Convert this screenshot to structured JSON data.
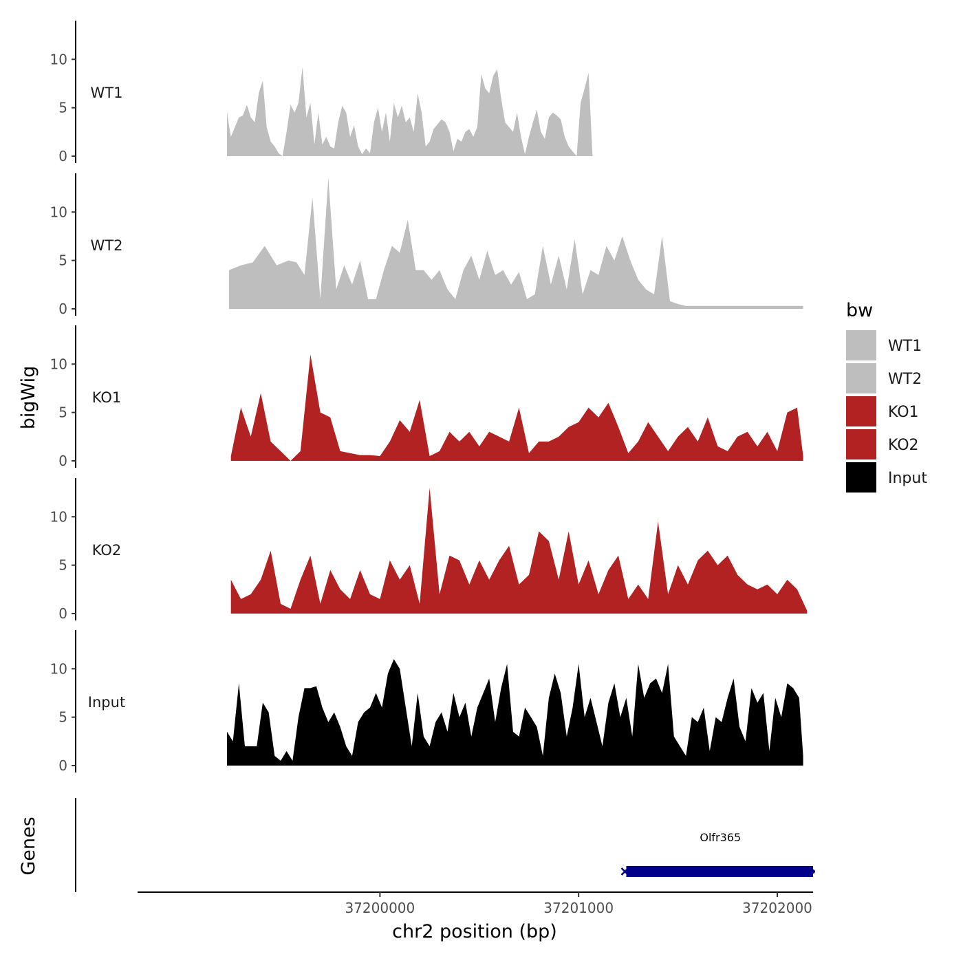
{
  "chart_data": {
    "type": "area",
    "xlabel": "chr2 position (bp)",
    "ylabel": "bigWig",
    "xlim": [
      37198780,
      37202180
    ],
    "x_ticks": [
      37200000,
      37201000,
      37202000
    ],
    "x_tick_labels": [
      "37200000",
      "37201000",
      "37202000"
    ],
    "ylim": [
      0,
      14
    ],
    "y_ticks": [
      0,
      5,
      10
    ],
    "y_tick_labels": [
      "0",
      "5",
      "10"
    ],
    "genes_track_label": "Genes",
    "legend": {
      "title": "bw",
      "position": "right",
      "entries": [
        {
          "label": "WT1",
          "color": "#bebebe"
        },
        {
          "label": "WT2",
          "color": "#bebebe"
        },
        {
          "label": "KO1",
          "color": "#b22222"
        },
        {
          "label": "KO2",
          "color": "#b22222"
        },
        {
          "label": "Input",
          "color": "#000000"
        }
      ]
    },
    "series": [
      {
        "name": "WT1",
        "color": "#bebebe",
        "x": [
          37199230,
          37199250,
          37199270,
          37199290,
          37199310,
          37199330,
          37199350,
          37199370,
          37199390,
          37199410,
          37199430,
          37199450,
          37199470,
          37199490,
          37199510,
          37199530,
          37199550,
          37199570,
          37199590,
          37199610,
          37199630,
          37199650,
          37199670,
          37199690,
          37199710,
          37199730,
          37199750,
          37199770,
          37199790,
          37199810,
          37199830,
          37199850,
          37199870,
          37199890,
          37199910,
          37199930,
          37199950,
          37199970,
          37199990,
          37200010,
          37200030,
          37200050,
          37200070,
          37200090,
          37200110,
          37200130,
          37200150,
          37200170,
          37200190,
          37200210,
          37200230,
          37200250,
          37200270,
          37200290,
          37200310,
          37200330,
          37200350,
          37200370,
          37200390,
          37200410,
          37200430,
          37200450,
          37200470,
          37200490,
          37200510,
          37200530,
          37200550,
          37200570,
          37200590,
          37200610,
          37200630,
          37200650,
          37200670,
          37200690,
          37200710,
          37200730,
          37200750,
          37200770,
          37200790,
          37200810,
          37200830,
          37200850,
          37200870,
          37200890,
          37200910,
          37200930,
          37200950,
          37200970,
          37200990,
          37201010,
          37201030,
          37201050,
          37201070,
          37201090,
          37201110,
          37201130,
          37201150,
          37201170,
          37201190,
          37201210,
          37201230,
          37201250,
          37201270,
          37201290,
          37201310,
          37201330,
          37201350,
          37201370,
          37201390,
          37201410,
          37201430,
          37201450,
          37201470,
          37201490,
          37201510,
          37201530,
          37201550,
          37201570,
          37201590,
          37201610,
          37201630,
          37201650,
          37201670,
          37201690,
          37201710,
          37201730,
          37201750,
          37201770,
          37201790,
          37201810,
          37201830,
          37201850,
          37201870,
          37201890,
          37201910,
          37201930,
          37201950,
          37201970,
          37201990,
          37202010,
          37202030,
          37202050,
          37202070,
          37202090,
          37202110,
          37202130
        ],
        "y": [
          4.5,
          2.0,
          3.0,
          4.0,
          4.2,
          5.3,
          4.0,
          3.5,
          6.5,
          7.8,
          3.0,
          1.5,
          1.0,
          0.3,
          0.0,
          2.5,
          5.3,
          4.5,
          5.5,
          9.2,
          4.0,
          5.5,
          1.2,
          4.5,
          1.2,
          2.0,
          1.0,
          0.8,
          3.5,
          5.2,
          4.5,
          2.0,
          3.2,
          1.0,
          0.2,
          0.8,
          0.3,
          3.5,
          5.0,
          2.5,
          4.5,
          1.5,
          5.5,
          4.0,
          5.2,
          3.5,
          4.0,
          2.5,
          6.5,
          4.5,
          1.0,
          1.5,
          2.8,
          3.3,
          3.8,
          3.5,
          2.5,
          0.5,
          1.8,
          1.5,
          2.5,
          2.8,
          2.0,
          3.0,
          8.5,
          7.0,
          6.5,
          8.3,
          9.0,
          6.0,
          3.5,
          3.0,
          2.5,
          4.5,
          2.0,
          0.2,
          2.0,
          3.5,
          4.8,
          2.5,
          1.8,
          4.0,
          4.5,
          4.2,
          3.8,
          2.0,
          1.0,
          0.5,
          0.0,
          5.5,
          7.0,
          8.6,
          0.0,
          0.0,
          0.0,
          0.0,
          0.0,
          0.0,
          0.0,
          0.0,
          0.0,
          0.0,
          0.0,
          0.0,
          0.0,
          0.0,
          0.0,
          0.0,
          0.0,
          0.0,
          0.0,
          0.0,
          0.0,
          0.0,
          0.0,
          0.0,
          0.0,
          0.0,
          0.0,
          0.0,
          0.0,
          0.0,
          0.0,
          0.0,
          0.0,
          0.0,
          0.0,
          0.0,
          0.0,
          0.0,
          0.0,
          0.0,
          0.0,
          0.0,
          0.0,
          0.0,
          0.0,
          0.0,
          0.0,
          0.0,
          0.0,
          0.0,
          0.0,
          0.0,
          0.0,
          0.0
        ]
      },
      {
        "name": "WT2",
        "color": "#bebebe",
        "x": [
          37199240,
          37199300,
          37199360,
          37199420,
          37199480,
          37199540,
          37199580,
          37199620,
          37199660,
          37199700,
          37199740,
          37199780,
          37199820,
          37199860,
          37199900,
          37199940,
          37199980,
          37200020,
          37200060,
          37200100,
          37200140,
          37200180,
          37200220,
          37200260,
          37200300,
          37200340,
          37200380,
          37200420,
          37200460,
          37200500,
          37200540,
          37200580,
          37200620,
          37200660,
          37200700,
          37200740,
          37200780,
          37200820,
          37200860,
          37200900,
          37200940,
          37200980,
          37201020,
          37201060,
          37201100,
          37201140,
          37201180,
          37201220,
          37201260,
          37201300,
          37201340,
          37201380,
          37201420,
          37201460,
          37201500,
          37201540,
          37201580,
          37201620,
          37201660,
          37201700,
          37201740,
          37201780,
          37201820,
          37201860,
          37201900,
          37201940,
          37201980,
          37202020,
          37202060,
          37202100,
          37202130
        ],
        "y": [
          4.0,
          4.5,
          4.8,
          6.5,
          4.5,
          5.0,
          4.8,
          3.5,
          11.5,
          1.0,
          13.5,
          2.0,
          4.5,
          2.5,
          5.0,
          1.0,
          1.0,
          4.0,
          6.5,
          5.8,
          9.2,
          4.0,
          4.0,
          3.0,
          4.0,
          2.0,
          1.0,
          4.0,
          5.5,
          3.0,
          6.0,
          3.5,
          4.0,
          2.5,
          3.8,
          1.0,
          1.5,
          6.5,
          2.5,
          5.5,
          2.0,
          7.2,
          1.5,
          4.0,
          3.5,
          6.5,
          5.0,
          7.5,
          5.0,
          3.0,
          2.0,
          1.5,
          7.5,
          0.8,
          0.5,
          0.3,
          0.3,
          0.3,
          0.3,
          0.3,
          0.3,
          0.3,
          0.3,
          0.3,
          0.3,
          0.3,
          0.3,
          0.3,
          0.3,
          0.3,
          0.3
        ]
      },
      {
        "name": "KO1",
        "color": "#b22222",
        "x": [
          37199250,
          37199300,
          37199350,
          37199400,
          37199450,
          37199500,
          37199550,
          37199600,
          37199650,
          37199700,
          37199750,
          37199800,
          37199850,
          37199900,
          37199950,
          37200000,
          37200050,
          37200100,
          37200150,
          37200200,
          37200250,
          37200300,
          37200350,
          37200400,
          37200450,
          37200500,
          37200550,
          37200600,
          37200650,
          37200700,
          37200750,
          37200800,
          37200850,
          37200900,
          37200950,
          37201000,
          37201050,
          37201100,
          37201150,
          37201200,
          37201250,
          37201300,
          37201350,
          37201400,
          37201450,
          37201500,
          37201550,
          37201600,
          37201650,
          37201700,
          37201750,
          37201800,
          37201850,
          37201900,
          37201950,
          37202000,
          37202050,
          37202100,
          37202130
        ],
        "y": [
          0.5,
          5.5,
          2.5,
          7.0,
          2.0,
          1.0,
          0.0,
          1.0,
          11.0,
          5.0,
          4.5,
          1.0,
          0.8,
          0.6,
          0.6,
          0.5,
          2.0,
          4.2,
          3.0,
          6.3,
          0.5,
          1.0,
          3.0,
          2.0,
          3.0,
          1.5,
          3.0,
          2.5,
          2.0,
          5.5,
          0.8,
          2.0,
          2.0,
          2.5,
          3.5,
          4.0,
          5.5,
          4.5,
          6.0,
          3.5,
          0.8,
          2.0,
          4.0,
          2.5,
          1.0,
          2.5,
          3.5,
          2.0,
          4.5,
          1.5,
          1.0,
          2.5,
          3.0,
          1.5,
          3.0,
          1.0,
          5.0,
          5.5,
          0.5
        ]
      },
      {
        "name": "KO2",
        "color": "#b22222",
        "x": [
          37199250,
          37199300,
          37199350,
          37199400,
          37199450,
          37199500,
          37199550,
          37199600,
          37199650,
          37199700,
          37199750,
          37199800,
          37199850,
          37199900,
          37199950,
          37200000,
          37200050,
          37200100,
          37200150,
          37200200,
          37200250,
          37200300,
          37200350,
          37200400,
          37200450,
          37200500,
          37200550,
          37200600,
          37200650,
          37200700,
          37200750,
          37200800,
          37200850,
          37200900,
          37200950,
          37201000,
          37201050,
          37201100,
          37201150,
          37201200,
          37201250,
          37201300,
          37201350,
          37201400,
          37201450,
          37201500,
          37201550,
          37201600,
          37201650,
          37201700,
          37201750,
          37201800,
          37201850,
          37201900,
          37201950,
          37202000,
          37202050,
          37202100,
          37202150
        ],
        "y": [
          3.5,
          1.5,
          2.0,
          3.5,
          6.5,
          1.0,
          0.5,
          3.5,
          6.0,
          1.0,
          4.5,
          2.5,
          1.5,
          4.5,
          2.0,
          1.5,
          5.5,
          3.5,
          5.0,
          1.0,
          13.0,
          2.0,
          6.0,
          5.5,
          3.0,
          5.5,
          3.5,
          5.5,
          7.0,
          3.0,
          4.0,
          8.5,
          7.5,
          3.5,
          8.5,
          3.0,
          5.5,
          2.0,
          4.5,
          6.0,
          1.5,
          3.0,
          1.5,
          9.5,
          2.0,
          5.0,
          3.0,
          5.5,
          6.5,
          5.0,
          6.0,
          4.0,
          3.0,
          2.5,
          3.0,
          2.0,
          3.5,
          2.5,
          0.3
        ]
      },
      {
        "name": "Input",
        "color": "#000000",
        "x": [
          37199230,
          37199260,
          37199290,
          37199320,
          37199350,
          37199380,
          37199410,
          37199440,
          37199470,
          37199500,
          37199530,
          37199560,
          37199590,
          37199620,
          37199650,
          37199680,
          37199710,
          37199740,
          37199770,
          37199800,
          37199830,
          37199860,
          37199890,
          37199920,
          37199950,
          37199980,
          37200010,
          37200040,
          37200070,
          37200100,
          37200130,
          37200160,
          37200190,
          37200220,
          37200250,
          37200280,
          37200310,
          37200340,
          37200370,
          37200400,
          37200430,
          37200460,
          37200490,
          37200520,
          37200550,
          37200580,
          37200610,
          37200640,
          37200670,
          37200700,
          37200730,
          37200760,
          37200790,
          37200820,
          37200850,
          37200880,
          37200910,
          37200940,
          37200970,
          37201000,
          37201030,
          37201060,
          37201090,
          37201120,
          37201150,
          37201180,
          37201210,
          37201240,
          37201270,
          37201300,
          37201330,
          37201360,
          37201390,
          37201420,
          37201450,
          37201480,
          37201510,
          37201540,
          37201570,
          37201600,
          37201630,
          37201660,
          37201690,
          37201720,
          37201750,
          37201780,
          37201810,
          37201840,
          37201870,
          37201900,
          37201930,
          37201960,
          37201990,
          37202020,
          37202050,
          37202080,
          37202110,
          37202130
        ],
        "y": [
          3.5,
          2.5,
          8.5,
          2.0,
          2.0,
          2.0,
          6.5,
          5.5,
          1.0,
          0.5,
          1.5,
          0.5,
          5.0,
          8.0,
          8.0,
          8.2,
          6.0,
          4.5,
          5.5,
          4.0,
          2.0,
          1.0,
          4.5,
          5.5,
          6.0,
          7.5,
          6.0,
          9.5,
          11.0,
          10.0,
          6.0,
          2.0,
          7.5,
          3.0,
          2.0,
          4.5,
          5.5,
          3.5,
          7.5,
          5.0,
          6.5,
          3.0,
          6.0,
          7.5,
          9.0,
          4.5,
          8.0,
          10.5,
          3.5,
          3.0,
          6.0,
          5.0,
          4.0,
          1.0,
          7.0,
          9.5,
          7.5,
          3.0,
          6.0,
          10.5,
          5.0,
          7.0,
          4.5,
          2.0,
          6.5,
          8.5,
          5.0,
          7.0,
          3.0,
          10.5,
          7.0,
          8.5,
          9.0,
          7.5,
          10.5,
          3.0,
          2.0,
          1.0,
          5.0,
          4.5,
          6.0,
          1.5,
          5.0,
          4.5,
          7.0,
          9.0,
          4.0,
          2.5,
          8.0,
          6.5,
          7.5,
          1.5,
          7.0,
          5.0,
          8.5,
          8.0,
          7.0,
          1.0
        ]
      }
    ],
    "genes": [
      {
        "name": "Olfr365",
        "start": 37201240,
        "end": 37202180,
        "strand": "-",
        "color": "#00008b"
      }
    ]
  }
}
